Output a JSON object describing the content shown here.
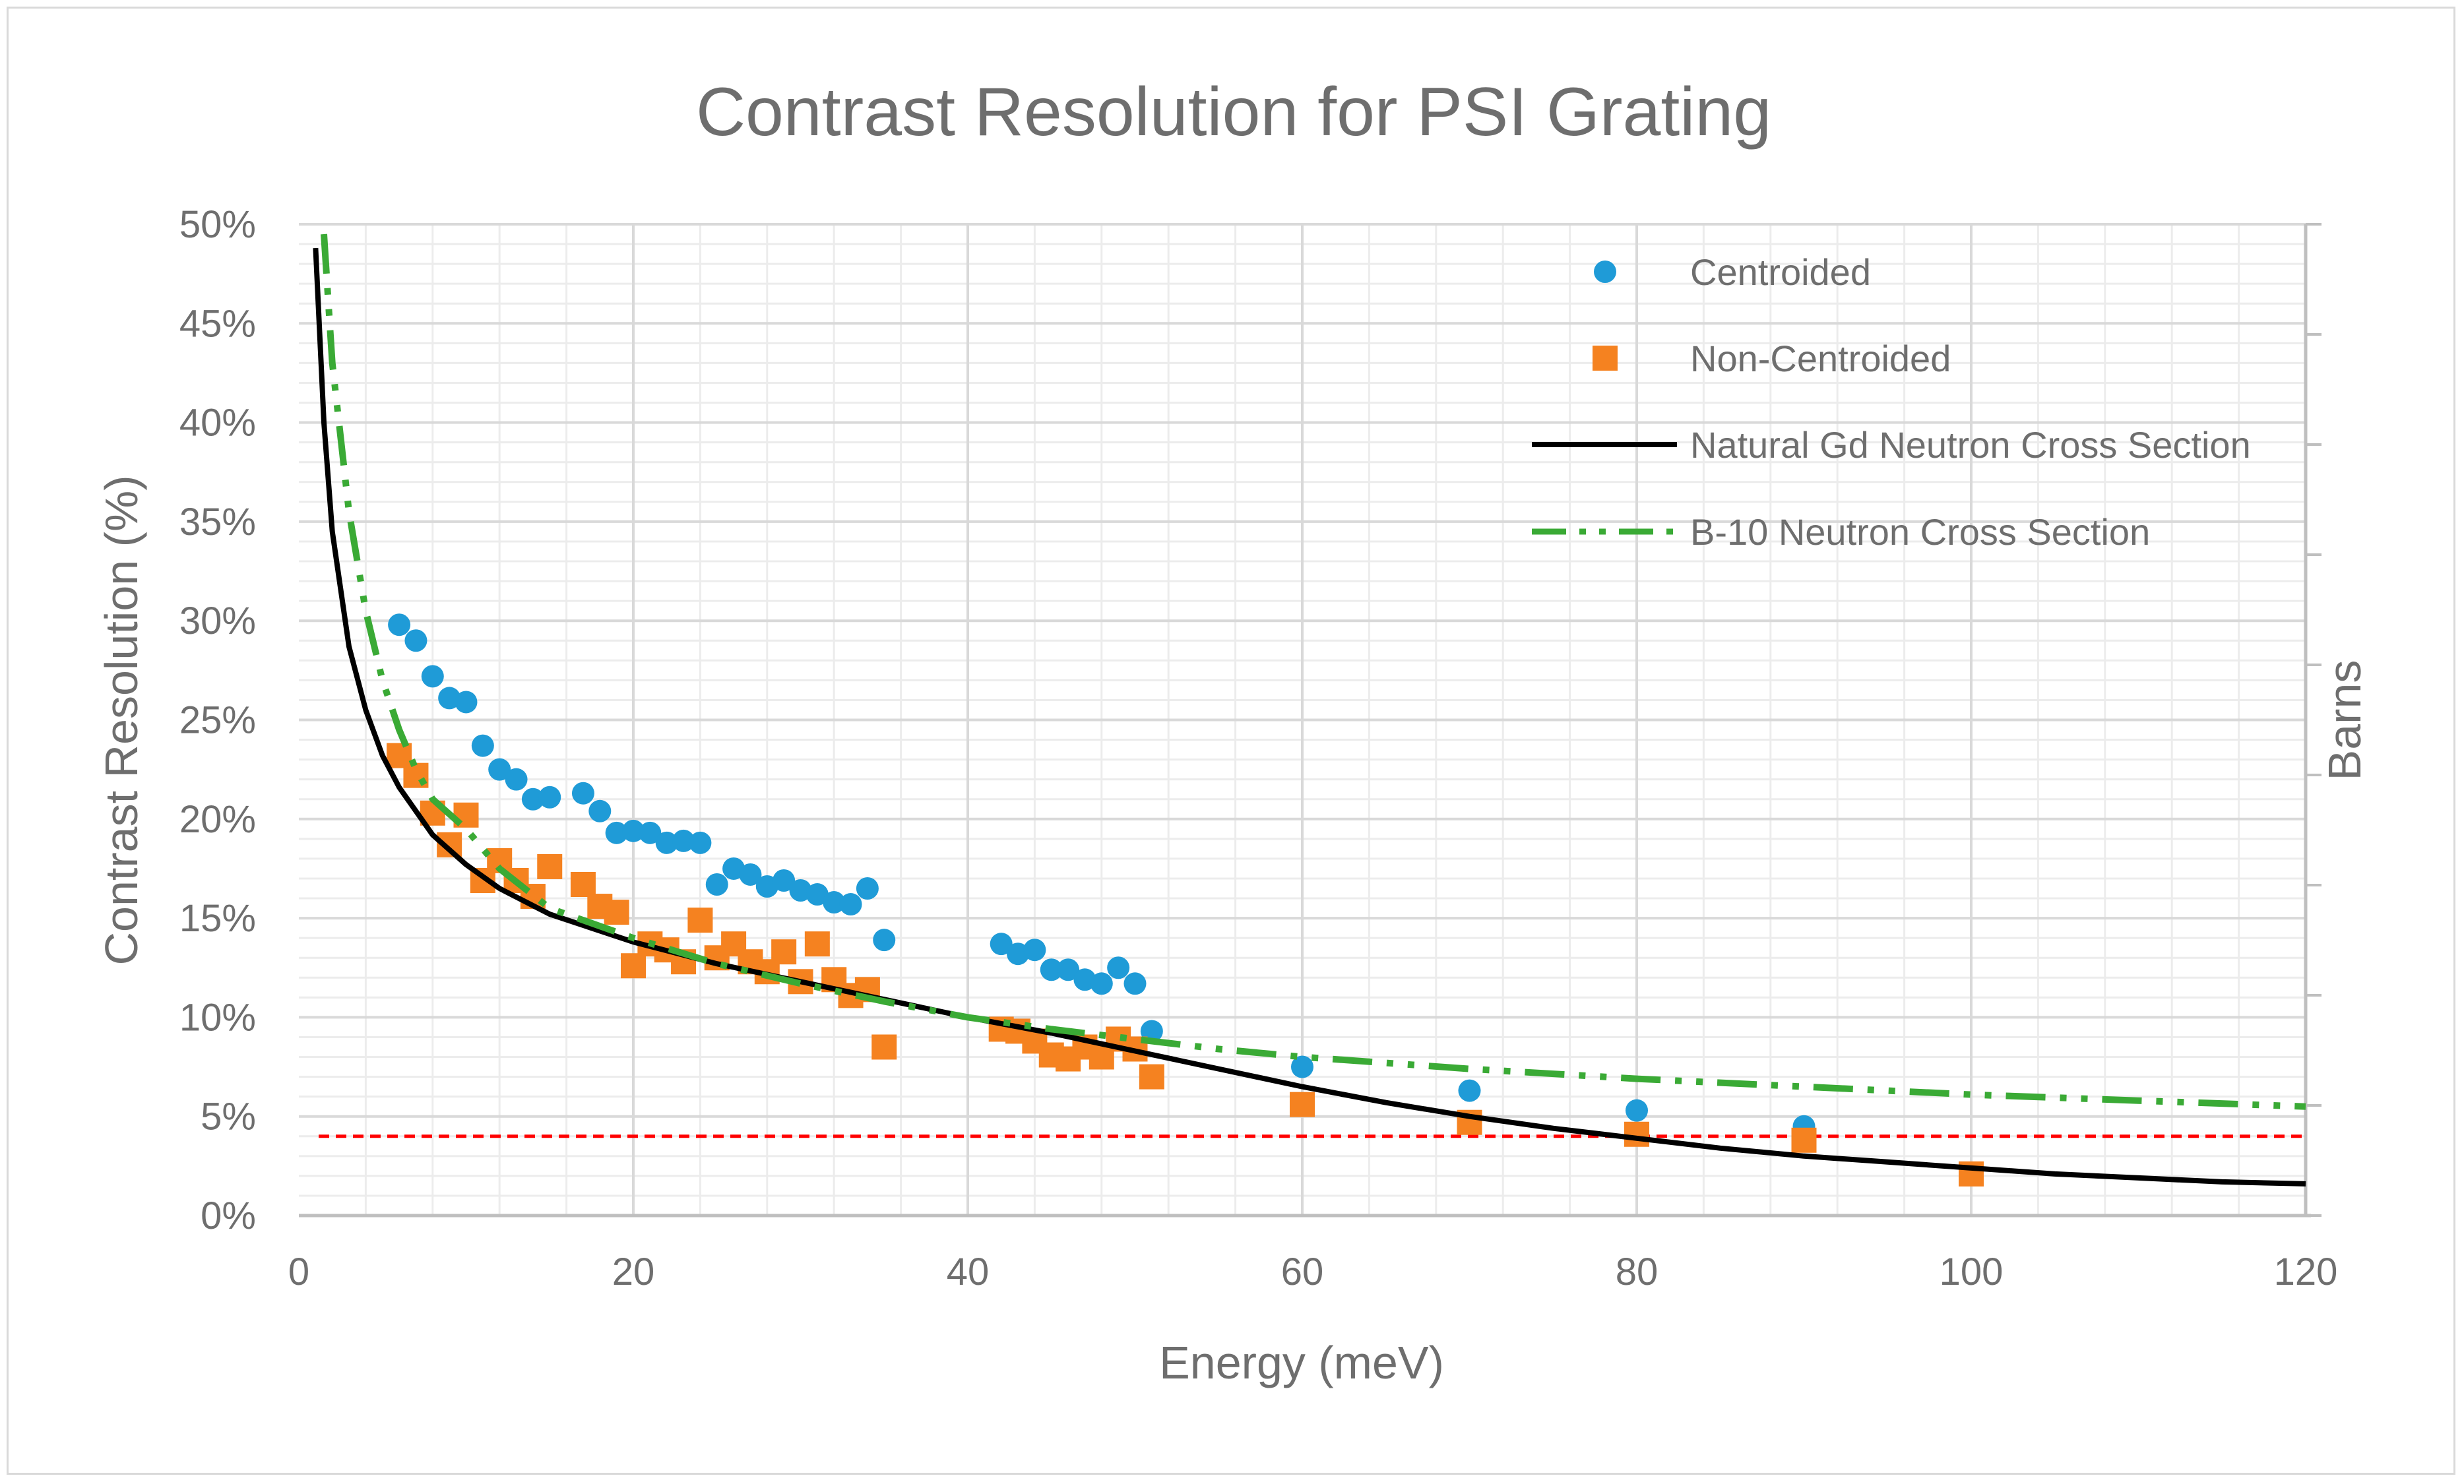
{
  "chart_data": {
    "type": "scatter",
    "title": "Contrast Resolution for PSI Grating",
    "xlabel": "Energy (meV)",
    "ylabel": "Contrast Resolution (%)",
    "y2label": "Barns",
    "xlim": [
      0,
      120
    ],
    "ylim": [
      0,
      50
    ],
    "x_ticks": [
      0,
      20,
      40,
      60,
      80,
      100,
      120
    ],
    "y_ticks": [
      0,
      5,
      10,
      15,
      20,
      25,
      30,
      35,
      40,
      45,
      50
    ],
    "x_tick_labels": [
      "0",
      "20",
      "40",
      "60",
      "80",
      "100",
      "120"
    ],
    "y_tick_labels": [
      "0%",
      "5%",
      "10%",
      "15%",
      "20%",
      "25%",
      "30%",
      "35%",
      "40%",
      "45%",
      "50%"
    ],
    "grid": true,
    "legend_position": "top-right",
    "threshold_line": {
      "y": 4,
      "color": "#ff0000",
      "style": "dashed"
    },
    "series": [
      {
        "name": "Centroided",
        "kind": "scatter",
        "marker": "circle",
        "color": "#1f9bd7",
        "points": [
          [
            6,
            29.8
          ],
          [
            7,
            29.0
          ],
          [
            8,
            27.2
          ],
          [
            9,
            26.1
          ],
          [
            10,
            25.9
          ],
          [
            11,
            23.7
          ],
          [
            12,
            22.5
          ],
          [
            13,
            22.0
          ],
          [
            14,
            21.0
          ],
          [
            15,
            21.1
          ],
          [
            17,
            21.3
          ],
          [
            18,
            20.4
          ],
          [
            19,
            19.3
          ],
          [
            20,
            19.4
          ],
          [
            21,
            19.3
          ],
          [
            22,
            18.8
          ],
          [
            23,
            18.9
          ],
          [
            24,
            18.8
          ],
          [
            25,
            16.7
          ],
          [
            26,
            17.5
          ],
          [
            27,
            17.2
          ],
          [
            28,
            16.6
          ],
          [
            29,
            16.9
          ],
          [
            30,
            16.4
          ],
          [
            31,
            16.2
          ],
          [
            32,
            15.8
          ],
          [
            33,
            15.7
          ],
          [
            34,
            16.5
          ],
          [
            35,
            13.9
          ],
          [
            42,
            13.7
          ],
          [
            43,
            13.2
          ],
          [
            44,
            13.4
          ],
          [
            45,
            12.4
          ],
          [
            46,
            12.4
          ],
          [
            47,
            11.9
          ],
          [
            48,
            11.7
          ],
          [
            49,
            12.5
          ],
          [
            50,
            11.7
          ],
          [
            51,
            9.3
          ],
          [
            60,
            7.5
          ],
          [
            70,
            6.3
          ],
          [
            80,
            5.3
          ],
          [
            90,
            4.5
          ]
        ]
      },
      {
        "name": "Non-Centroided",
        "kind": "scatter",
        "marker": "square",
        "color": "#f58220",
        "points": [
          [
            6,
            23.2
          ],
          [
            7,
            22.2
          ],
          [
            8,
            20.3
          ],
          [
            9,
            18.7
          ],
          [
            10,
            20.2
          ],
          [
            11,
            16.9
          ],
          [
            12,
            17.9
          ],
          [
            13,
            16.9
          ],
          [
            14,
            16.1
          ],
          [
            15,
            17.6
          ],
          [
            17,
            16.7
          ],
          [
            18,
            15.6
          ],
          [
            19,
            15.3
          ],
          [
            20,
            12.6
          ],
          [
            21,
            13.7
          ],
          [
            22,
            13.4
          ],
          [
            23,
            12.8
          ],
          [
            24,
            14.9
          ],
          [
            25,
            13.0
          ],
          [
            26,
            13.7
          ],
          [
            27,
            12.8
          ],
          [
            28,
            12.3
          ],
          [
            29,
            13.3
          ],
          [
            30,
            11.8
          ],
          [
            31,
            13.7
          ],
          [
            32,
            11.9
          ],
          [
            33,
            11.1
          ],
          [
            34,
            11.4
          ],
          [
            35,
            8.5
          ],
          [
            42,
            9.4
          ],
          [
            43,
            9.3
          ],
          [
            44,
            8.8
          ],
          [
            45,
            8.1
          ],
          [
            46,
            7.9
          ],
          [
            47,
            8.5
          ],
          [
            48,
            8.0
          ],
          [
            49,
            8.9
          ],
          [
            50,
            8.4
          ],
          [
            51,
            7.0
          ],
          [
            60,
            5.6
          ],
          [
            70,
            4.7
          ],
          [
            80,
            4.1
          ],
          [
            90,
            3.8
          ],
          [
            100,
            2.1
          ]
        ]
      },
      {
        "name": "Natural Gd Neutron Cross Section",
        "kind": "line",
        "style": "solid",
        "color": "#000000",
        "points": [
          [
            1,
            48.8
          ],
          [
            1.5,
            40.0
          ],
          [
            2,
            34.5
          ],
          [
            3,
            28.7
          ],
          [
            4,
            25.5
          ],
          [
            5,
            23.2
          ],
          [
            6,
            21.6
          ],
          [
            8,
            19.2
          ],
          [
            10,
            17.7
          ],
          [
            12,
            16.5
          ],
          [
            15,
            15.2
          ],
          [
            20,
            13.8
          ],
          [
            25,
            12.7
          ],
          [
            30,
            11.8
          ],
          [
            35,
            10.9
          ],
          [
            40,
            10.0
          ],
          [
            45,
            9.2
          ],
          [
            50,
            8.3
          ],
          [
            55,
            7.4
          ],
          [
            60,
            6.5
          ],
          [
            65,
            5.7
          ],
          [
            70,
            5.0
          ],
          [
            75,
            4.4
          ],
          [
            80,
            3.9
          ],
          [
            85,
            3.4
          ],
          [
            90,
            3.0
          ],
          [
            95,
            2.7
          ],
          [
            100,
            2.4
          ],
          [
            105,
            2.1
          ],
          [
            110,
            1.9
          ],
          [
            115,
            1.7
          ],
          [
            120,
            1.6
          ]
        ]
      },
      {
        "name": "B-10 Neutron Cross Section",
        "kind": "line",
        "style": "dash-dot-dot",
        "color": "#3aaa35",
        "points": [
          [
            1.5,
            49.5
          ],
          [
            2,
            43.0
          ],
          [
            3,
            35.5
          ],
          [
            4,
            30.5
          ],
          [
            5,
            27.0
          ],
          [
            6,
            24.5
          ],
          [
            7,
            22.5
          ],
          [
            8,
            21.0
          ],
          [
            10,
            19.5
          ],
          [
            12,
            17.5
          ],
          [
            15,
            15.5
          ],
          [
            20,
            14.0
          ],
          [
            25,
            12.7
          ],
          [
            30,
            11.7
          ],
          [
            35,
            10.8
          ],
          [
            40,
            10.0
          ],
          [
            45,
            9.4
          ],
          [
            50,
            8.9
          ],
          [
            55,
            8.4
          ],
          [
            60,
            8.0
          ],
          [
            70,
            7.4
          ],
          [
            80,
            6.9
          ],
          [
            90,
            6.5
          ],
          [
            100,
            6.1
          ],
          [
            110,
            5.8
          ],
          [
            120,
            5.5
          ]
        ]
      }
    ]
  }
}
